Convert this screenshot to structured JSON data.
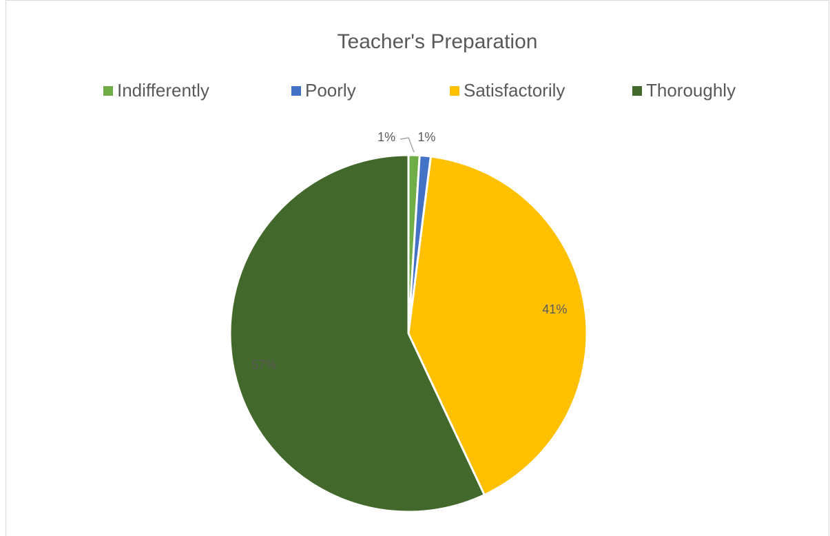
{
  "chart_data": {
    "type": "pie",
    "title": "Teacher's Preparation",
    "categories": [
      "Indifferently",
      "Poorly",
      "Satisfactorily",
      "Thoroughly"
    ],
    "values": [
      1,
      1,
      41,
      57
    ],
    "value_labels": [
      "1%",
      "1%",
      "41%",
      "57%"
    ],
    "colors": [
      "#70ad47",
      "#4472c4",
      "#ffc000",
      "#43682b"
    ],
    "legend": "top"
  }
}
